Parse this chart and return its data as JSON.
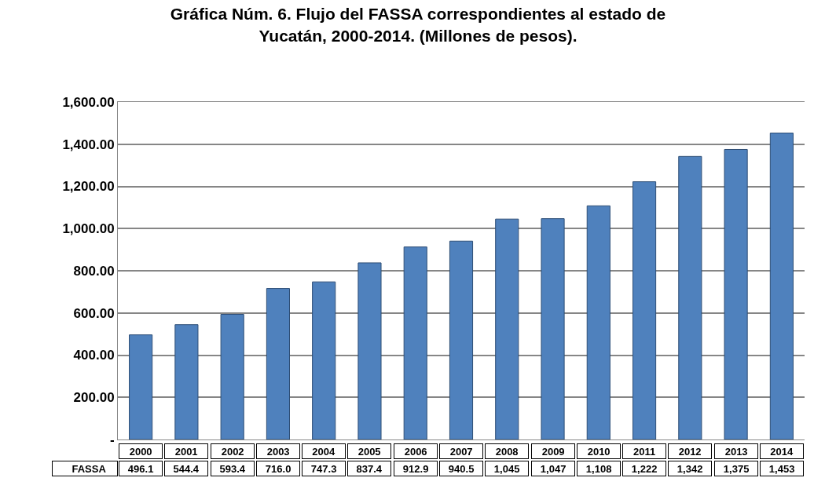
{
  "chart_data": {
    "type": "bar",
    "title": "Gráfica Núm. 6. Flujo del FASSA correspondientes al estado de\nYucatán, 2000-2014. (Millones de pesos).",
    "categories": [
      "2000",
      "2001",
      "2002",
      "2003",
      "2004",
      "2005",
      "2006",
      "2007",
      "2008",
      "2009",
      "2010",
      "2011",
      "2012",
      "2013",
      "2014"
    ],
    "series": [
      {
        "name": "FASSA",
        "color": "#4f81bd",
        "values": [
          496.1,
          544.4,
          593.4,
          716.0,
          747.3,
          837.4,
          912.9,
          940.5,
          1045,
          1047,
          1108,
          1222,
          1342,
          1375,
          1453
        ],
        "value_labels": [
          "496.1",
          "544.4",
          "593.4",
          "716.0",
          "747.3",
          "837.4",
          "912.9",
          "940.5",
          "1,045",
          "1,047",
          "1,108",
          "1,222",
          "1,342",
          "1,375",
          "1,453"
        ]
      }
    ],
    "ylim": [
      0,
      1600
    ],
    "yticks": [
      {
        "value": 0,
        "label": "-"
      },
      {
        "value": 200,
        "label": "200.00"
      },
      {
        "value": 400,
        "label": "400.00"
      },
      {
        "value": 600,
        "label": "600.00"
      },
      {
        "value": 800,
        "label": "800.00"
      },
      {
        "value": 1000,
        "label": "1,000.00"
      },
      {
        "value": 1200,
        "label": "1,200.00"
      },
      {
        "value": 1400,
        "label": "1,400.00"
      },
      {
        "value": 1600,
        "label": "1,600.00"
      }
    ],
    "grid": "y",
    "legend": "bottom left"
  }
}
